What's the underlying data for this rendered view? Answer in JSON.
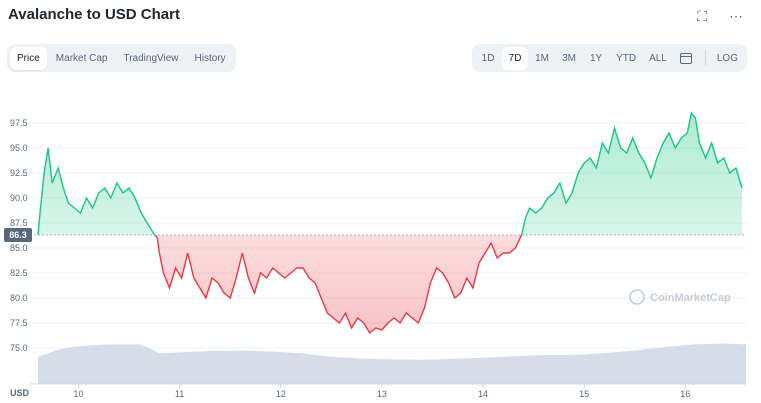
{
  "header": {
    "title": "Avalanche to USD Chart"
  },
  "icons": {
    "fullscreen": "fullscreen-icon",
    "more": "more-icon"
  },
  "tabs_left": [
    "Price",
    "Market Cap",
    "TradingView",
    "History"
  ],
  "tabs_left_active": "Price",
  "tabs_right": [
    "1D",
    "7D",
    "1M",
    "3M",
    "1Y",
    "YTD",
    "ALL"
  ],
  "tabs_right_active": "7D",
  "log_label": "LOG",
  "watermark": "CoinMarketCap",
  "colors": {
    "up": "#16c784",
    "down": "#ea3943",
    "ref_label_bg": "#58667e",
    "volume": "#cfd6e4"
  },
  "chart_data": {
    "type": "line",
    "reference_price": 86.3,
    "ylim": [
      73,
      100
    ],
    "y_ticks": [
      75.0,
      77.5,
      80.0,
      82.5,
      85.0,
      87.5,
      90.0,
      92.5,
      95.0,
      97.5
    ],
    "x_ticks": [
      "10",
      "11",
      "12",
      "13",
      "14",
      "15",
      "16"
    ],
    "x_unit_label": "USD",
    "grid": true,
    "price": {
      "x": [
        9.6,
        9.62,
        9.66,
        9.7,
        9.74,
        9.8,
        9.85,
        9.9,
        9.96,
        10.02,
        10.08,
        10.14,
        10.2,
        10.26,
        10.32,
        10.38,
        10.44,
        10.5,
        10.56,
        10.62,
        10.68,
        10.74,
        10.78,
        10.8,
        10.84,
        10.9,
        10.96,
        11.02,
        11.08,
        11.14,
        11.2,
        11.26,
        11.32,
        11.38,
        11.44,
        11.5,
        11.56,
        11.62,
        11.68,
        11.74,
        11.8,
        11.86,
        11.92,
        11.98,
        12.04,
        12.1,
        12.16,
        12.22,
        12.28,
        12.34,
        12.4,
        12.46,
        12.52,
        12.58,
        12.64,
        12.7,
        12.76,
        12.82,
        12.88,
        12.94,
        13.0,
        13.06,
        13.12,
        13.18,
        13.24,
        13.3,
        13.36,
        13.42,
        13.48,
        13.54,
        13.6,
        13.66,
        13.72,
        13.78,
        13.84,
        13.9,
        13.96,
        14.02,
        14.08,
        14.14,
        14.2,
        14.26,
        14.32,
        14.38,
        14.42,
        14.46,
        14.52,
        14.58,
        14.64,
        14.7,
        14.76,
        14.82,
        14.88,
        14.94,
        15.0,
        15.06,
        15.12,
        15.18,
        15.24,
        15.3,
        15.36,
        15.42,
        15.48,
        15.54,
        15.6,
        15.66,
        15.72,
        15.78,
        15.84,
        15.9,
        15.96,
        16.02,
        16.06,
        16.1,
        16.14,
        16.2,
        16.26,
        16.32,
        16.38,
        16.44,
        16.5,
        16.56
      ],
      "y": [
        86.3,
        88.5,
        92.5,
        95.0,
        91.5,
        93.0,
        91.0,
        89.5,
        89.0,
        88.5,
        90.0,
        89.0,
        90.5,
        91.0,
        90.0,
        91.5,
        90.5,
        91.0,
        90.0,
        88.5,
        87.5,
        86.5,
        86.0,
        84.5,
        82.5,
        81.0,
        83.0,
        82.0,
        84.5,
        82.0,
        81.0,
        80.0,
        82.0,
        81.5,
        80.5,
        80.0,
        82.0,
        84.5,
        82.0,
        80.5,
        82.5,
        82.0,
        83.0,
        82.5,
        82.0,
        82.5,
        83.0,
        83.0,
        82.0,
        81.5,
        80.0,
        78.5,
        78.0,
        77.5,
        78.5,
        77.0,
        78.0,
        77.5,
        76.5,
        77.0,
        76.8,
        77.5,
        78.0,
        77.5,
        78.5,
        78.0,
        77.5,
        79.0,
        81.5,
        83.0,
        82.5,
        81.5,
        80.0,
        80.5,
        82.0,
        81.0,
        83.5,
        84.5,
        85.5,
        84.0,
        84.5,
        84.5,
        85.0,
        86.3,
        88.0,
        89.0,
        88.5,
        89.0,
        90.0,
        90.5,
        91.5,
        89.5,
        90.5,
        92.5,
        93.5,
        94.0,
        93.0,
        95.5,
        94.5,
        97.0,
        95.0,
        94.5,
        96.0,
        94.5,
        93.5,
        92.0,
        94.0,
        95.5,
        96.5,
        95.0,
        96.0,
        96.5,
        98.5,
        98.0,
        95.5,
        94.0,
        95.5,
        93.5,
        94.0,
        92.5,
        93.0,
        91.0
      ]
    },
    "volume": {
      "x": [
        9.6,
        9.8,
        10.0,
        10.3,
        10.6,
        10.7,
        10.8,
        11.0,
        11.3,
        11.6,
        11.9,
        12.2,
        12.5,
        12.8,
        13.1,
        13.4,
        13.7,
        14.0,
        14.3,
        14.6,
        14.9,
        15.2,
        15.5,
        15.8,
        16.1,
        16.4,
        16.6
      ],
      "y": [
        0.62,
        0.78,
        0.86,
        0.9,
        0.9,
        0.82,
        0.7,
        0.72,
        0.75,
        0.76,
        0.74,
        0.7,
        0.62,
        0.58,
        0.56,
        0.55,
        0.57,
        0.6,
        0.63,
        0.66,
        0.66,
        0.7,
        0.76,
        0.84,
        0.9,
        0.92,
        0.9
      ]
    }
  }
}
